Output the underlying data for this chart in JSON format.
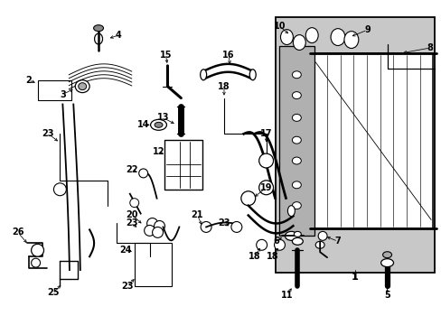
{
  "bg_color": "#ffffff",
  "fig_width": 4.89,
  "fig_height": 3.6,
  "dpi": 100,
  "lc": "#000000",
  "gray": "#c8c8c8",
  "font_size": 7.0
}
